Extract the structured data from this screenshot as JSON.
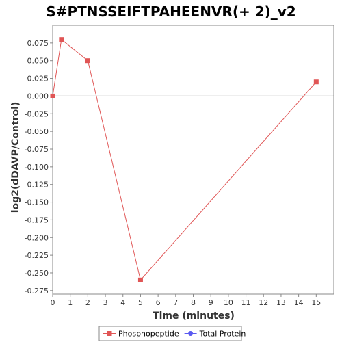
{
  "chart_data": {
    "type": "line",
    "title": "S#PTNSSEIFTPAHEENVR(+ 2)_v2",
    "xlabel": "Time (minutes)",
    "ylabel": "log2(dDAVP/Control)",
    "xlim": [
      0,
      16
    ],
    "ylim": [
      -0.28,
      0.1
    ],
    "x_ticks": [
      0,
      1,
      2,
      3,
      4,
      5,
      6,
      7,
      8,
      9,
      10,
      11,
      12,
      13,
      14,
      15
    ],
    "y_ticks": [
      0.075,
      0.05,
      0.025,
      0.0,
      -0.025,
      -0.05,
      -0.075,
      -0.1,
      -0.125,
      -0.15,
      -0.175,
      -0.2,
      -0.225,
      -0.25,
      -0.275
    ],
    "y_tick_labels": [
      "0.075",
      "0.050",
      "0.025",
      "0.000",
      "-0.025",
      "-0.050",
      "-0.075",
      "-0.100",
      "-0.125",
      "-0.150",
      "-0.175",
      "-0.200",
      "-0.225",
      "-0.250",
      "-0.275"
    ],
    "series": [
      {
        "name": "Phosphopeptide",
        "color": "#e05555",
        "marker": "square",
        "x": [
          0,
          0.5,
          2,
          5,
          15
        ],
        "y": [
          0.0,
          0.08,
          0.05,
          -0.26,
          0.02
        ]
      },
      {
        "name": "Total Protein",
        "color": "#5a5af0",
        "marker": "circle",
        "x": [],
        "y": []
      }
    ],
    "zero_line": true,
    "grid": false,
    "legend_position": "bottom-center"
  }
}
